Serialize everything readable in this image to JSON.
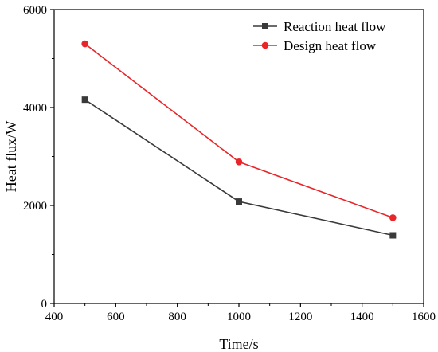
{
  "chart_data": {
    "type": "line",
    "title": "",
    "xlabel": "Time/s",
    "ylabel": "Heat flux/W",
    "xlim": [
      400,
      1600
    ],
    "ylim": [
      0,
      6000
    ],
    "xticks": [
      400,
      600,
      800,
      1000,
      1200,
      1400,
      1600
    ],
    "yticks": [
      0,
      2000,
      4000,
      6000
    ],
    "xtick_labels": [
      "400",
      "600",
      "800",
      "1000",
      "1200",
      "1400",
      "1600"
    ],
    "ytick_labels": [
      "0",
      "2000",
      "4000",
      "6000"
    ],
    "grid": false,
    "legend_position": "top-right",
    "series": [
      {
        "name": "Reaction heat flow",
        "marker": "square",
        "color": "#3a3a3a",
        "x": [
          500,
          1000,
          1500
        ],
        "y": [
          4160,
          2080,
          1390
        ]
      },
      {
        "name": "Design heat flow",
        "marker": "circle",
        "color": "#e8262a",
        "x": [
          500,
          1000,
          1500
        ],
        "y": [
          5300,
          2890,
          1750
        ]
      }
    ]
  }
}
